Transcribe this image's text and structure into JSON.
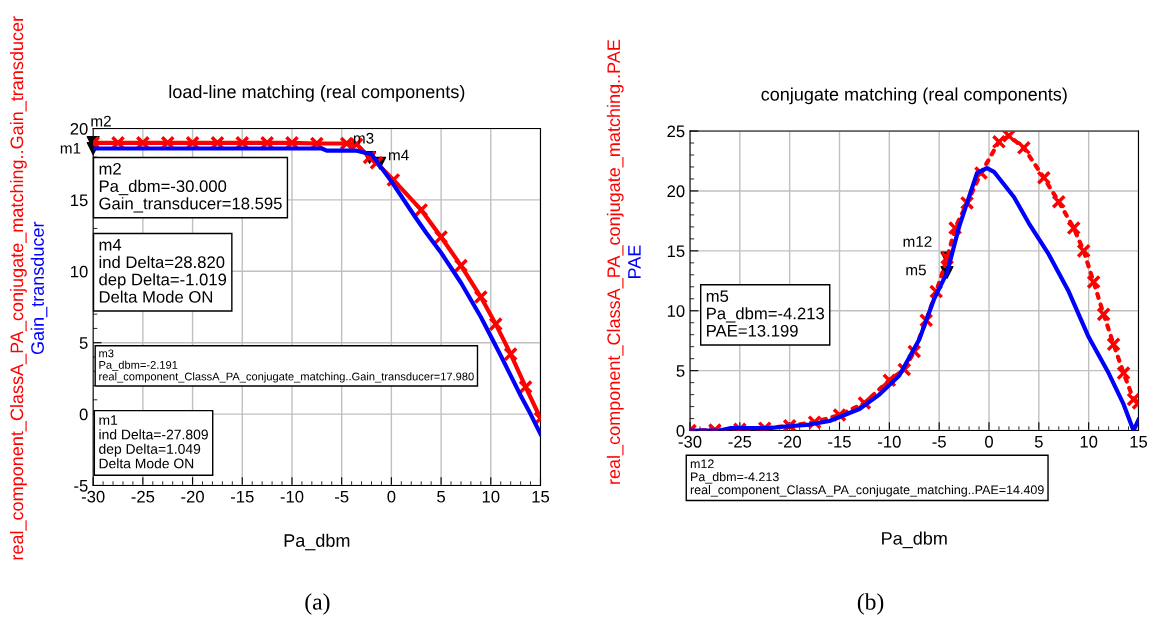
{
  "chart_data": [
    {
      "type": "line",
      "title": "load-line matching (real components)",
      "xlabel": "Pa_dbm",
      "xlim": [
        -30,
        15
      ],
      "xticks": [
        -30,
        -25,
        -20,
        -15,
        -10,
        -5,
        0,
        5,
        10,
        15
      ],
      "ylim": [
        -5,
        20
      ],
      "yticks": [
        -5,
        0,
        5,
        10,
        15,
        20
      ],
      "grid": true,
      "series": [
        {
          "name": "real_component_ClassA_PA_conjugate_matching..Gain_transducer",
          "color": "#ff0000",
          "line_style": "solid",
          "marker": "cross",
          "x": [
            -30,
            -27.5,
            -25,
            -22.5,
            -20,
            -17.5,
            -15,
            -12.5,
            -10,
            -7.5,
            -4.5,
            -3.5,
            -2.2,
            -1.5,
            0.2,
            3,
            5,
            7,
            9,
            10.5,
            12,
            13.5,
            15
          ],
          "values": [
            19.0,
            19.0,
            19.0,
            19.0,
            19.0,
            19.0,
            19.0,
            19.0,
            19.0,
            18.95,
            18.95,
            18.9,
            17.98,
            17.6,
            16.4,
            14.3,
            12.4,
            10.4,
            8.2,
            6.3,
            4.2,
            1.9,
            -0.3
          ]
        },
        {
          "name": "Gain_transducer",
          "color": "#0000ff",
          "line_style": "solid",
          "marker": "none",
          "x": [
            -30,
            -20,
            -10,
            -7,
            -6.5,
            -3.5,
            -2,
            0,
            2.5,
            3.5,
            5,
            7,
            9,
            11,
            13,
            14,
            15
          ],
          "values": [
            18.6,
            18.6,
            18.6,
            18.6,
            18.45,
            18.45,
            18.2,
            16.3,
            13.7,
            12.7,
            11.3,
            9.2,
            6.8,
            4.1,
            1.3,
            0,
            -1.4
          ]
        }
      ],
      "annotations": [
        {
          "text": "m2",
          "x": -30,
          "y": 18.595
        },
        {
          "text": "m1",
          "x": -30,
          "y": 19.029
        },
        {
          "text": "m3",
          "x": -2.191,
          "y": 17.98
        },
        {
          "text": "m4",
          "x": -1.18,
          "y": 17.576
        },
        "m2\nPa_dbm=-30.000\nGain_transducer=18.595",
        "m4\nind Delta=28.820\ndep Delta=-1.019\nDelta Mode ON",
        "m3\nPa_dbm=-2.191\nreal_component_ClassA_PA_conjugate_matching..Gain_transducer=17.980",
        "m1\nind Delta=-27.809\ndep Delta=1.049\nDelta Mode ON",
        "(a)"
      ]
    },
    {
      "type": "line",
      "title": "conjugate matching (real components)",
      "xlabel": "Pa_dbm",
      "xlim": [
        -30,
        15
      ],
      "xticks": [
        -30,
        -25,
        -20,
        -15,
        -10,
        -5,
        0,
        5,
        10,
        15
      ],
      "ylim": [
        0,
        25
      ],
      "yticks": [
        0,
        5,
        10,
        15,
        20,
        25
      ],
      "grid": true,
      "series": [
        {
          "name": "real_component_ClassA_PA_conjugate_matching..PAE",
          "color": "#ff0000",
          "line_style": "dotted",
          "marker": "cross",
          "x": [
            -30,
            -27.5,
            -25,
            -22.5,
            -20,
            -17.5,
            -15,
            -12.5,
            -10,
            -8.5,
            -7.5,
            -6.3,
            -5.3,
            -4.2,
            -3.4,
            -2.2,
            -0.8,
            1,
            2,
            3.5,
            5.5,
            7,
            8.5,
            9.5,
            10.5,
            11.5,
            12.5,
            13.5,
            14.5,
            15
          ],
          "values": [
            0,
            0.05,
            0.1,
            0.2,
            0.4,
            0.7,
            1.3,
            2.3,
            4.2,
            5.1,
            6.6,
            9.2,
            11.6,
            14.4,
            16.9,
            19,
            21.5,
            24.1,
            24.6,
            23.6,
            21.1,
            19.1,
            16.9,
            15,
            12.4,
            9.7,
            7.2,
            4.8,
            2.6,
            2.3
          ]
        },
        {
          "name": "PAE",
          "color": "#0000ff",
          "line_style": "solid",
          "marker": "none",
          "x": [
            -30,
            -27,
            -26,
            -22,
            -21,
            -18,
            -16,
            -13,
            -11,
            -9,
            -7,
            -5.5,
            -4.2,
            -3,
            -2,
            -1.2,
            -0.2,
            0.5,
            2.5,
            4,
            6,
            8,
            10,
            12,
            13.5,
            14.5,
            15
          ],
          "values": [
            0,
            0,
            0.2,
            0.2,
            0.3,
            0.5,
            0.8,
            1.8,
            3,
            4.6,
            7.6,
            11,
            13.2,
            17,
            19.5,
            21.5,
            21.9,
            21.6,
            19.5,
            17.3,
            14.7,
            11.6,
            7.8,
            4.8,
            2.2,
            0,
            0.9
          ]
        }
      ],
      "annotations": [
        {
          "text": "m12",
          "x": -4.213,
          "y": 14.409
        },
        {
          "text": "m5",
          "x": -4.213,
          "y": 13.199
        },
        "m5\nPa_dbm=-4.213\nPAE=13.199",
        "m12\nPa_dbm=-4.213\nreal_component_ClassA_PA_conjugate_matching..PAE=14.409",
        "(b)"
      ]
    }
  ]
}
